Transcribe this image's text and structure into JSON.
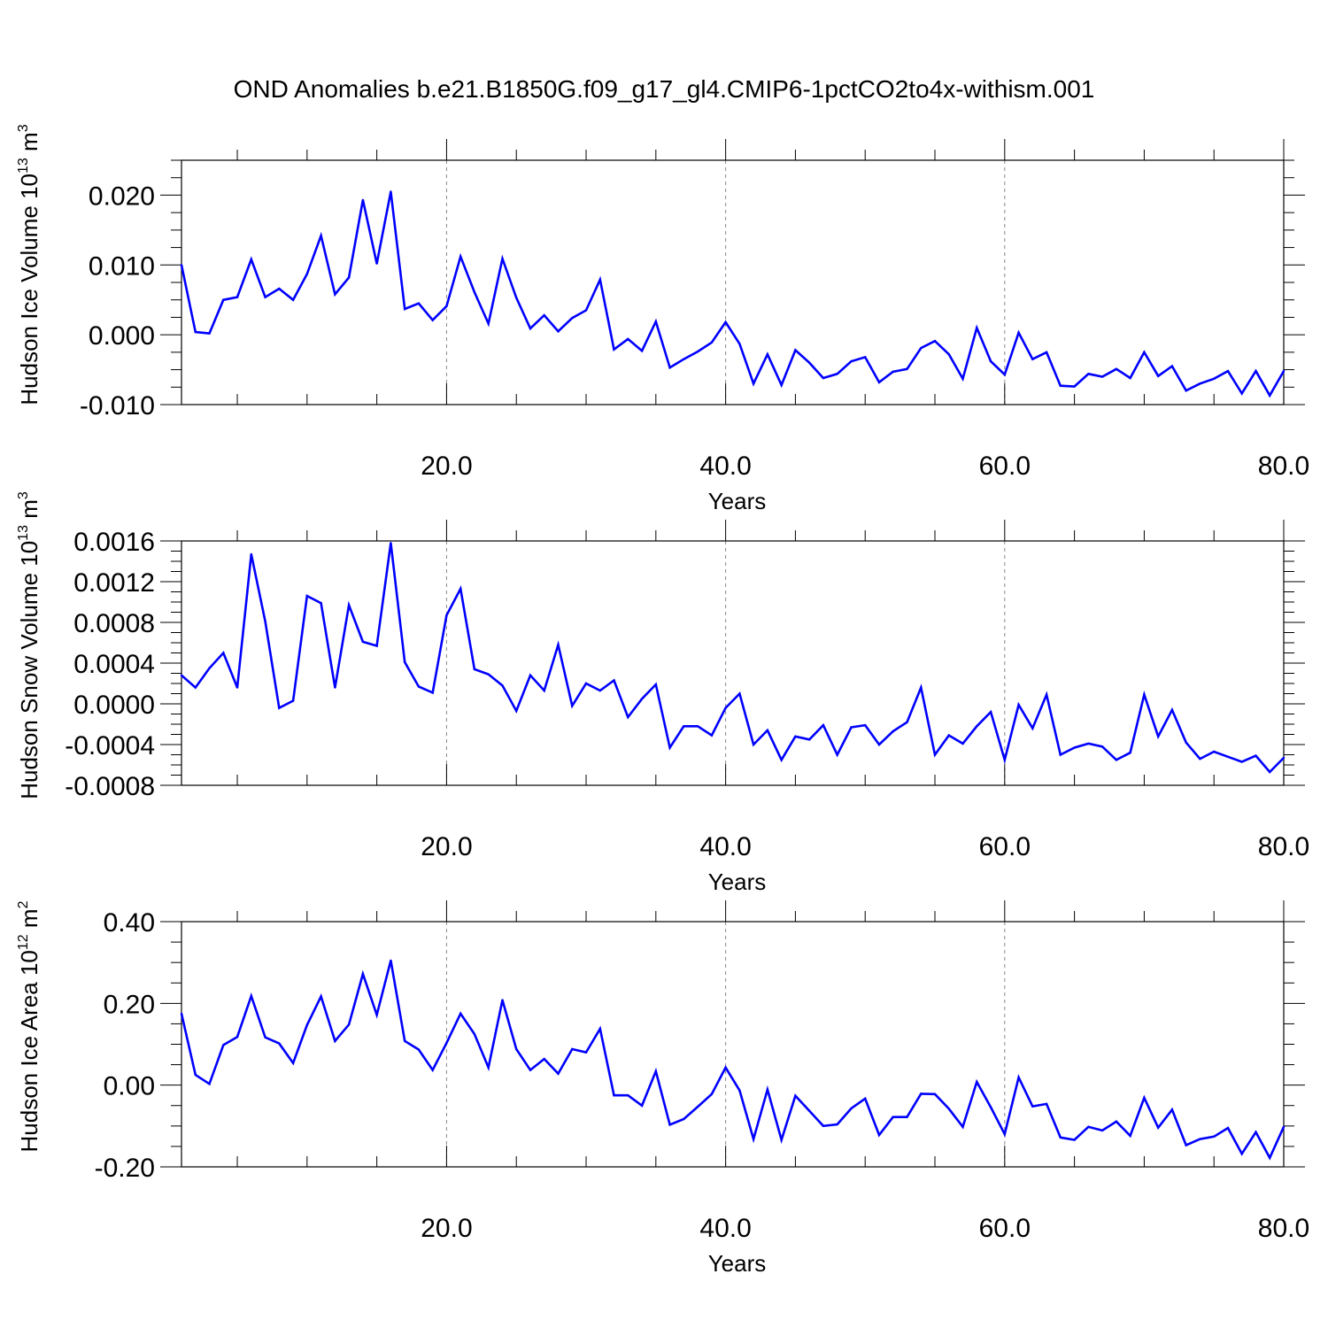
{
  "title": "OND Anomalies b.e21.B1850G.f09_g17_gl4.CMIP6-1pctCO2to4x-withism.001",
  "line_color": "#0000ff",
  "chart_data": [
    {
      "type": "line",
      "ylabel_main": "Hudson Ice Volume 10",
      "ylabel_exp": "13",
      "ylabel_unit": " m",
      "ylabel_unit_exp": "3",
      "xlabel": "Years",
      "xlim": [
        1,
        80
      ],
      "ylim": [
        -0.01,
        0.025
      ],
      "x_ticks": [
        "20.0",
        "40.0",
        "60.0",
        "80.0"
      ],
      "x_tick_values": [
        20,
        40,
        60,
        80
      ],
      "y_ticks": [
        "-0.010",
        "0.000",
        "0.010",
        "0.020"
      ],
      "y_tick_values": [
        -0.01,
        0.0,
        0.01,
        0.02
      ],
      "grid": "dashed vertical lines at major x ticks",
      "x": [
        1,
        2,
        3,
        4,
        5,
        6,
        7,
        8,
        9,
        10,
        11,
        12,
        13,
        14,
        15,
        16,
        17,
        18,
        19,
        20,
        21,
        22,
        23,
        24,
        25,
        26,
        27,
        28,
        29,
        30,
        31,
        32,
        33,
        34,
        35,
        36,
        37,
        38,
        39,
        40,
        41,
        42,
        43,
        44,
        45,
        46,
        47,
        48,
        49,
        50,
        51,
        52,
        53,
        54,
        55,
        56,
        57,
        58,
        59,
        60,
        61,
        62,
        63,
        64,
        65,
        66,
        67,
        68,
        69,
        70,
        71,
        72,
        73,
        74,
        75,
        76,
        77,
        78,
        79,
        80
      ],
      "values": [
        0.01,
        0.0004,
        0.0002,
        0.005,
        0.0054,
        0.0108,
        0.0054,
        0.0066,
        0.005,
        0.0087,
        0.0142,
        0.0058,
        0.0082,
        0.0193,
        0.0102,
        0.0205,
        0.0037,
        0.0045,
        0.0021,
        0.0041,
        0.0112,
        0.0061,
        0.0016,
        0.0109,
        0.0053,
        0.0009,
        0.0028,
        0.0005,
        0.0024,
        0.0035,
        0.0079,
        -0.0021,
        -0.0006,
        -0.0023,
        0.0019,
        -0.0047,
        -0.0035,
        -0.0024,
        -0.0011,
        0.0018,
        -0.0013,
        -0.007,
        -0.0028,
        -0.0072,
        -0.0022,
        -0.004,
        -0.0062,
        -0.0056,
        -0.0038,
        -0.0032,
        -0.0068,
        -0.0053,
        -0.0049,
        -0.0019,
        -0.0009,
        -0.0028,
        -0.0063,
        0.001,
        -0.0038,
        -0.0057,
        0.0003,
        -0.0035,
        -0.0025,
        -0.0073,
        -0.0074,
        -0.0056,
        -0.006,
        -0.0049,
        -0.0062,
        -0.0025,
        -0.0059,
        -0.0045,
        -0.008,
        -0.007,
        -0.0063,
        -0.0052,
        -0.0084,
        -0.0052,
        -0.0087,
        -0.0052
      ]
    },
    {
      "type": "line",
      "ylabel_main": "Hudson Snow Volume 10",
      "ylabel_exp": "13",
      "ylabel_unit": " m",
      "ylabel_unit_exp": "3",
      "xlabel": "Years",
      "xlim": [
        1,
        80
      ],
      "ylim": [
        -0.0008,
        0.0016
      ],
      "x_ticks": [
        "20.0",
        "40.0",
        "60.0",
        "80.0"
      ],
      "x_tick_values": [
        20,
        40,
        60,
        80
      ],
      "y_ticks": [
        "-0.0008",
        "-0.0004",
        "0.0000",
        "0.0004",
        "0.0008",
        "0.0012",
        "0.0016"
      ],
      "y_tick_values": [
        -0.0008,
        -0.0004,
        0.0,
        0.0004,
        0.0008,
        0.0012,
        0.0016
      ],
      "grid": "dashed vertical lines at major x ticks",
      "x": [
        1,
        2,
        3,
        4,
        5,
        6,
        7,
        8,
        9,
        10,
        11,
        12,
        13,
        14,
        15,
        16,
        17,
        18,
        19,
        20,
        21,
        22,
        23,
        24,
        25,
        26,
        27,
        28,
        29,
        30,
        31,
        32,
        33,
        34,
        35,
        36,
        37,
        38,
        39,
        40,
        41,
        42,
        43,
        44,
        45,
        46,
        47,
        48,
        49,
        50,
        51,
        52,
        53,
        54,
        55,
        56,
        57,
        58,
        59,
        60,
        61,
        62,
        63,
        64,
        65,
        66,
        67,
        68,
        69,
        70,
        71,
        72,
        73,
        74,
        75,
        76,
        77,
        78,
        79,
        80
      ],
      "values": [
        0.00028,
        0.00016,
        0.00035,
        0.0005,
        0.00016,
        0.00147,
        0.00081,
        -4e-05,
        3e-05,
        0.00106,
        0.00099,
        0.00016,
        0.00097,
        0.00061,
        0.00057,
        0.00158,
        0.00041,
        0.00017,
        0.00011,
        0.00087,
        0.00113,
        0.00034,
        0.00029,
        0.00018,
        -7e-05,
        0.00028,
        0.00013,
        0.00058,
        -2e-05,
        0.0002,
        0.00013,
        0.00023,
        -0.00013,
        5e-05,
        0.00019,
        -0.00043,
        -0.00022,
        -0.00022,
        -0.00031,
        -4e-05,
        0.0001,
        -0.0004,
        -0.00026,
        -0.00055,
        -0.00032,
        -0.00035,
        -0.00021,
        -0.0005,
        -0.00023,
        -0.00021,
        -0.0004,
        -0.00027,
        -0.00018,
        0.00016,
        -0.0005,
        -0.00031,
        -0.00039,
        -0.00022,
        -8e-05,
        -0.00055,
        -1e-05,
        -0.00024,
        9e-05,
        -0.0005,
        -0.00043,
        -0.00039,
        -0.00042,
        -0.00055,
        -0.00048,
        9e-05,
        -0.00032,
        -6e-05,
        -0.00038,
        -0.00054,
        -0.00047,
        -0.00052,
        -0.00057,
        -0.00051,
        -0.00067,
        -0.00053
      ]
    },
    {
      "type": "line",
      "ylabel_main": "Hudson Ice Area 10",
      "ylabel_exp": "12",
      "ylabel_unit": " m",
      "ylabel_unit_exp": "2",
      "xlabel": "Years",
      "xlim": [
        1,
        80
      ],
      "ylim": [
        -0.2,
        0.4
      ],
      "x_ticks": [
        "20.0",
        "40.0",
        "60.0",
        "80.0"
      ],
      "x_tick_values": [
        20,
        40,
        60,
        80
      ],
      "y_ticks": [
        "-0.20",
        "0.00",
        "0.20",
        "0.40"
      ],
      "y_tick_values": [
        -0.2,
        0.0,
        0.2,
        0.4
      ],
      "grid": "dashed vertical lines at major x ticks",
      "x": [
        1,
        2,
        3,
        4,
        5,
        6,
        7,
        8,
        9,
        10,
        11,
        12,
        13,
        14,
        15,
        16,
        17,
        18,
        19,
        20,
        21,
        22,
        23,
        24,
        25,
        26,
        27,
        28,
        29,
        30,
        31,
        32,
        33,
        34,
        35,
        36,
        37,
        38,
        39,
        40,
        41,
        42,
        43,
        44,
        45,
        46,
        47,
        48,
        49,
        50,
        51,
        52,
        53,
        54,
        55,
        56,
        57,
        58,
        59,
        60,
        61,
        62,
        63,
        64,
        65,
        66,
        67,
        68,
        69,
        70,
        71,
        72,
        73,
        74,
        75,
        76,
        77,
        78,
        79,
        80
      ],
      "values": [
        0.175,
        0.025,
        0.003,
        0.098,
        0.118,
        0.218,
        0.117,
        0.102,
        0.054,
        0.147,
        0.217,
        0.108,
        0.148,
        0.272,
        0.172,
        0.305,
        0.108,
        0.087,
        0.037,
        0.103,
        0.175,
        0.125,
        0.043,
        0.208,
        0.088,
        0.037,
        0.064,
        0.028,
        0.088,
        0.08,
        0.138,
        -0.025,
        -0.025,
        -0.05,
        0.034,
        -0.097,
        -0.083,
        -0.053,
        -0.022,
        0.043,
        -0.013,
        -0.132,
        -0.011,
        -0.134,
        -0.026,
        -0.063,
        -0.1,
        -0.096,
        -0.057,
        -0.033,
        -0.122,
        -0.078,
        -0.078,
        -0.021,
        -0.022,
        -0.058,
        -0.102,
        0.008,
        -0.054,
        -0.12,
        0.019,
        -0.052,
        -0.046,
        -0.128,
        -0.134,
        -0.102,
        -0.111,
        -0.089,
        -0.124,
        -0.031,
        -0.104,
        -0.06,
        -0.147,
        -0.132,
        -0.126,
        -0.105,
        -0.168,
        -0.115,
        -0.178,
        -0.102
      ]
    }
  ]
}
